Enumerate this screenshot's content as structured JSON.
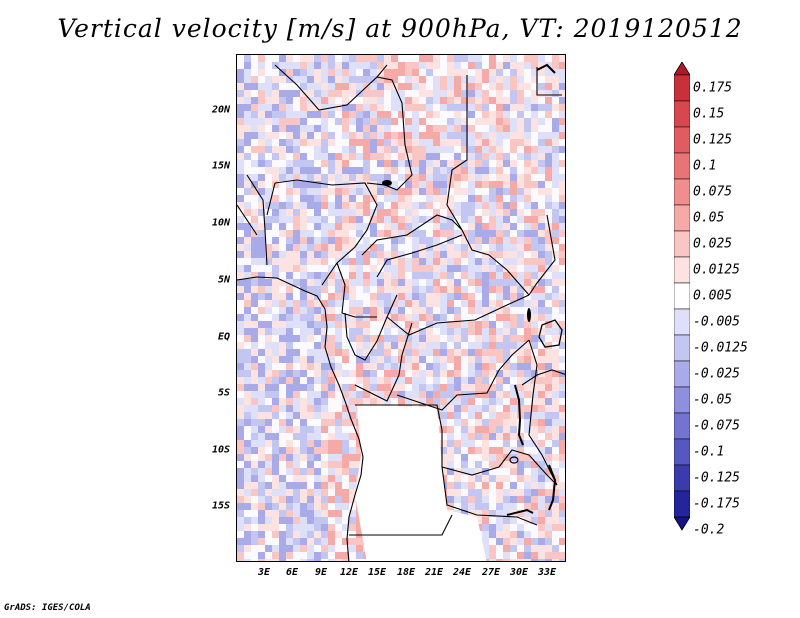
{
  "title": "Vertical velocity [m/s] at 900hPa, VT: 2019120512",
  "footer": "GrADS: IGES/COLA",
  "map": {
    "lat_labels": [
      "20N",
      "15N",
      "10N",
      "5N",
      "EQ",
      "5S",
      "10S",
      "15S"
    ],
    "lon_labels": [
      "3E",
      "6E",
      "9E",
      "12E",
      "15E",
      "18E",
      "21E",
      "24E",
      "27E",
      "30E",
      "33E"
    ]
  },
  "colorbar": {
    "labels": [
      "0.175",
      "0.15",
      "0.125",
      "0.1",
      "0.075",
      "0.05",
      "0.025",
      "0.0125",
      "0.005",
      "-0.005",
      "-0.0125",
      "-0.025",
      "-0.05",
      "-0.075",
      "-0.1",
      "-0.125",
      "-0.175",
      "-0.2"
    ],
    "colors": [
      "#b2182b",
      "#c8303a",
      "#d6484f",
      "#e05c61",
      "#e87476",
      "#ef8e8d",
      "#f5aaa8",
      "#f9c6c4",
      "#fce2e0",
      "#ffffff",
      "#dedff8",
      "#c4c6f2",
      "#a9abe9",
      "#8e90de",
      "#7274d0",
      "#5558c0",
      "#3a3cae",
      "#23259a",
      "#13138a"
    ]
  },
  "colors": {
    "positive": "#e0605f",
    "negative": "#6a6ed6",
    "border": "#000000"
  }
}
